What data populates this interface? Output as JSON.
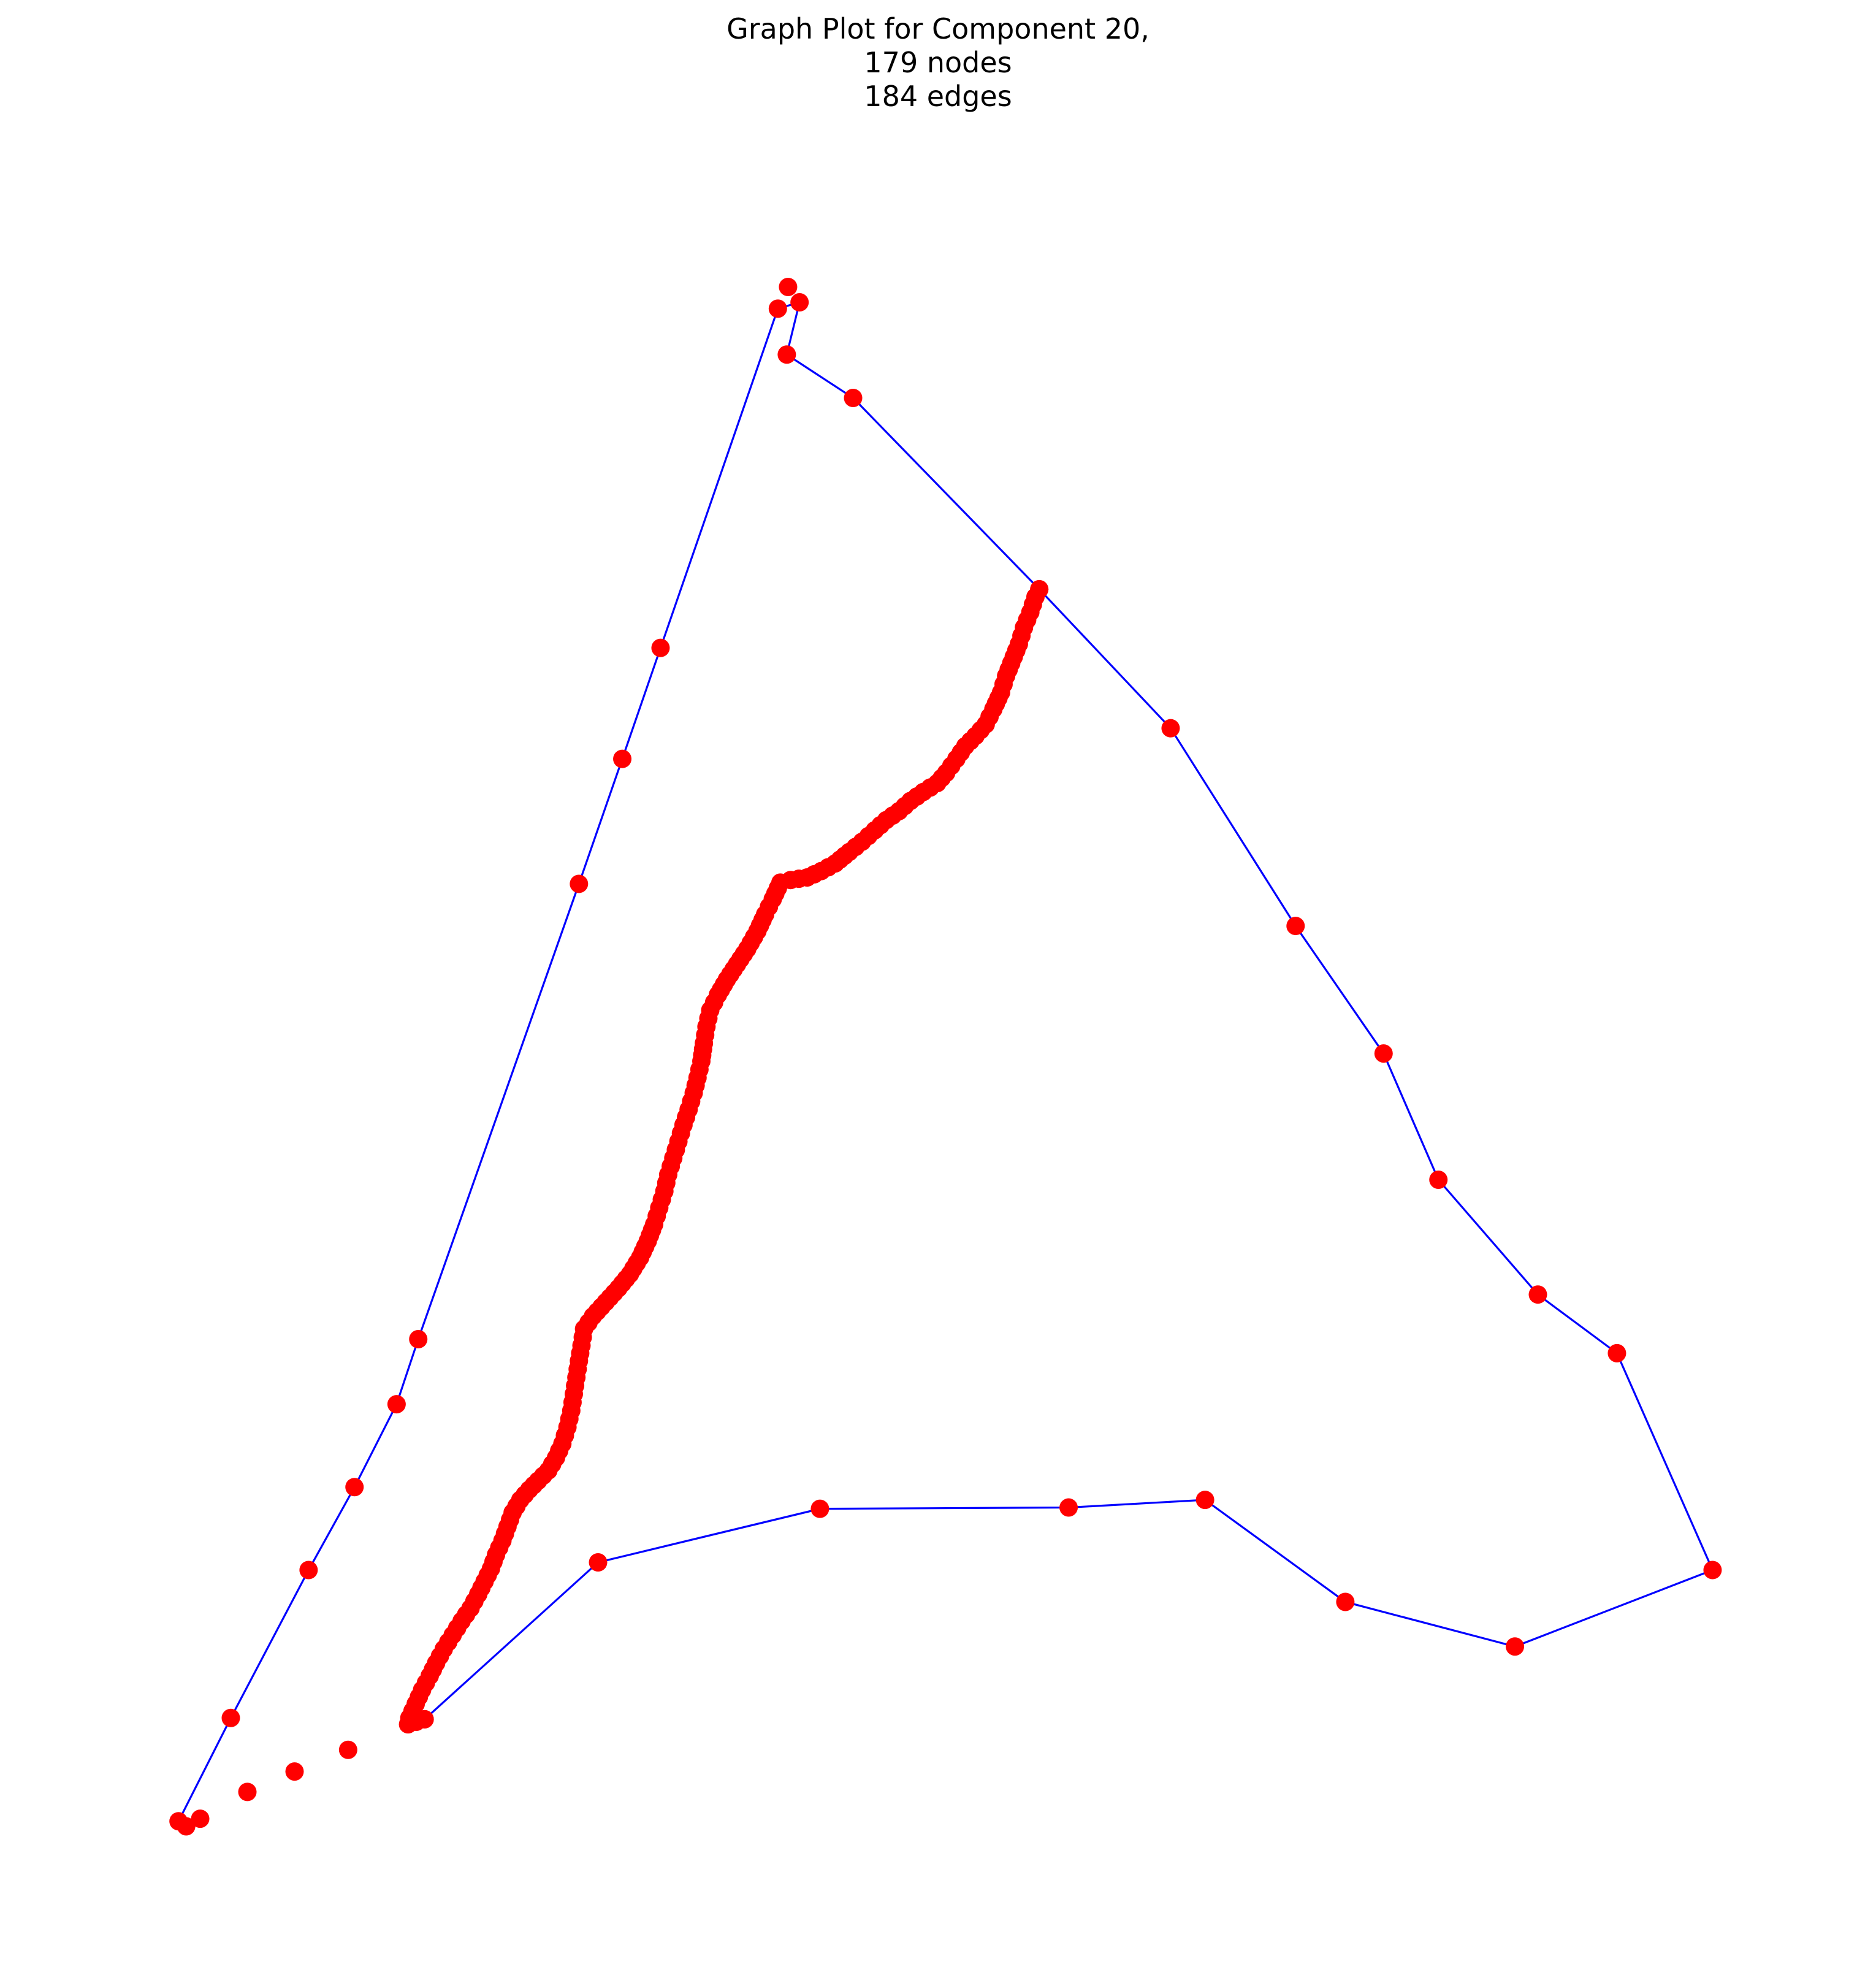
{
  "title": {
    "line1": "Graph Plot for Component 20,",
    "line2": "179 nodes",
    "line3": "184 edges"
  },
  "colors": {
    "node": "#ff0000",
    "edge": "#0000ff",
    "background": "#ffffff"
  }
}
